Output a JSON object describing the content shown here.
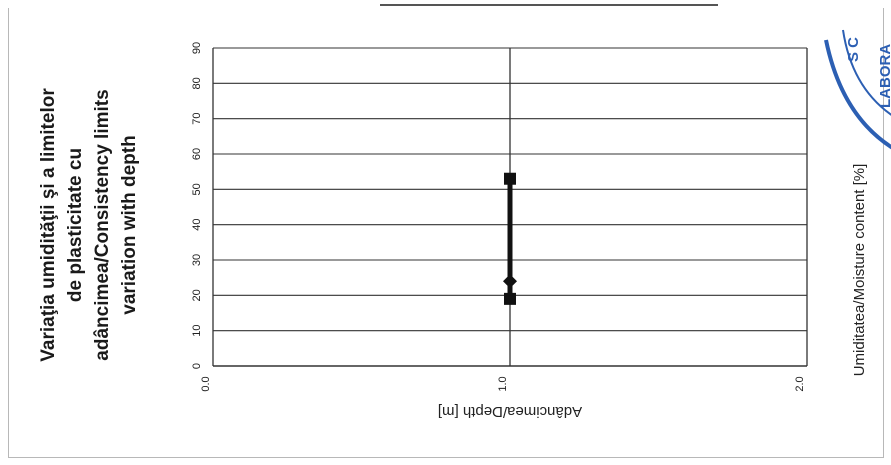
{
  "chart_data": {
    "type": "line",
    "title_lines": [
      "Variaţia umidităţii şi a limitelor",
      "de plasticitate cu",
      "adâncimea/Consistency limits",
      "variation with depth"
    ],
    "xlabel": "Adâncimea/Depth  [m]",
    "ylabel": "Umiditatea/Moisture content  [%]",
    "xlim": [
      0,
      2
    ],
    "ylim": [
      0,
      90
    ],
    "x_ticks": [
      "0.0",
      "1.0",
      "2.0"
    ],
    "y_ticks": [
      "0",
      "10",
      "20",
      "30",
      "40",
      "50",
      "60",
      "70",
      "80",
      "90"
    ],
    "grid": true,
    "series": [
      {
        "marker": "square",
        "points": [
          {
            "x": 1.0,
            "y": 53
          },
          {
            "x": 1.0,
            "y": 19
          }
        ]
      },
      {
        "marker": "diamond",
        "points": [
          {
            "x": 1.0,
            "y": 24
          }
        ]
      }
    ],
    "stamp_text": [
      "S C",
      "LABORA"
    ],
    "colors": {
      "line": "#111111",
      "grid": "#333333",
      "stamp": "#2c5fb3"
    }
  }
}
